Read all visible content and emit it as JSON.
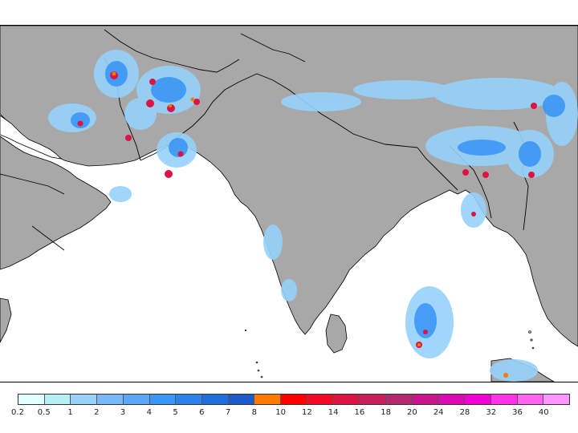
{
  "map": {
    "land_color": "#a8a8a8",
    "sea_color": "#ffffff",
    "border_color": "#000000"
  },
  "legend": {
    "levels": [
      "0.2",
      "0.5",
      "1",
      "2",
      "3",
      "4",
      "5",
      "6",
      "7",
      "8",
      "10",
      "12",
      "14",
      "16",
      "18",
      "20",
      "24",
      "28",
      "32",
      "36",
      "40"
    ],
    "colors": [
      "#e0ffff",
      "#b4f0f4",
      "#96d2fa",
      "#78b9fa",
      "#5ba6f5",
      "#3c96f5",
      "#2d82ea",
      "#1e6edc",
      "#1e5ac8",
      "#ff7800",
      "#ff0000",
      "#f00a28",
      "#dc1446",
      "#c81e5a",
      "#b4286e",
      "#c8148c",
      "#dc0ab4",
      "#f000d2",
      "#ff32e6",
      "#ff64f0",
      "#ff96ff"
    ]
  }
}
